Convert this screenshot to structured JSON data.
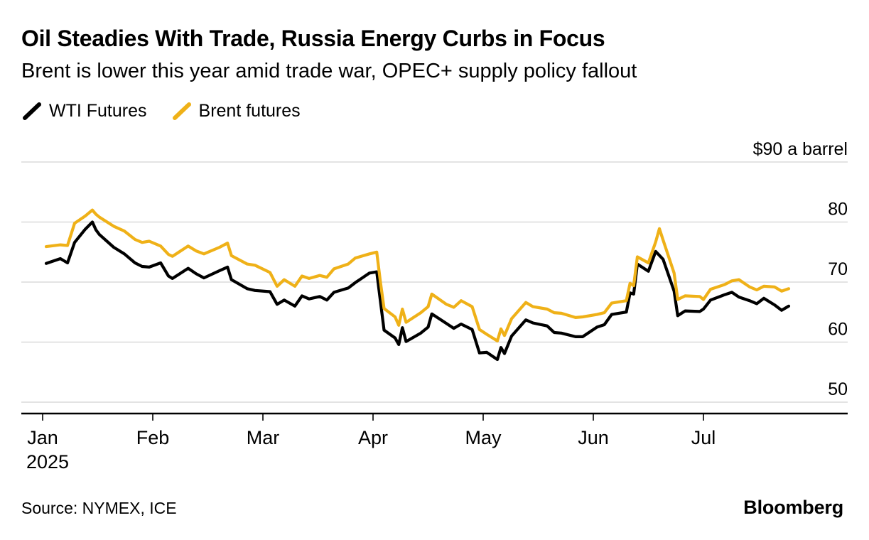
{
  "header": {
    "title": "Oil Steadies With Trade, Russia Energy Curbs in Focus",
    "subtitle": "Brent is lower this year amid trade war, OPEC+ supply policy fallout"
  },
  "legend": {
    "items": [
      {
        "label": "WTI Futures",
        "color": "#000000"
      },
      {
        "label": "Brent futures",
        "color": "#efb118"
      }
    ]
  },
  "chart_data": {
    "type": "line",
    "title": "Oil Steadies With Trade, Russia Energy Curbs in Focus",
    "subtitle": "Brent is lower this year amid trade war, OPEC+ supply policy fallout",
    "unit_label": "$90 a barrel",
    "ylim": [
      48,
      92
    ],
    "grid": true,
    "legend_position": "top-left",
    "y_ticks": [
      {
        "v": 90,
        "label": "$90 a barrel"
      },
      {
        "v": 80,
        "label": "80"
      },
      {
        "v": 70,
        "label": "70"
      },
      {
        "v": 60,
        "label": "60"
      },
      {
        "v": 50,
        "label": "50"
      }
    ],
    "x_ticks": [
      {
        "m": 0,
        "label": "Jan",
        "year": "2025"
      },
      {
        "m": 1,
        "label": "Feb"
      },
      {
        "m": 2,
        "label": "Mar"
      },
      {
        "m": 3,
        "label": "Apr"
      },
      {
        "m": 4,
        "label": "May"
      },
      {
        "m": 5,
        "label": "Jun"
      },
      {
        "m": 6,
        "label": "Jul"
      }
    ],
    "series": [
      {
        "name": "WTI Futures",
        "color": "#000000",
        "points": [
          [
            "2025-01-02",
            73.1
          ],
          [
            "2025-01-06",
            73.9
          ],
          [
            "2025-01-08",
            73.2
          ],
          [
            "2025-01-10",
            76.6
          ],
          [
            "2025-01-13",
            78.8
          ],
          [
            "2025-01-15",
            80.0
          ],
          [
            "2025-01-16",
            78.7
          ],
          [
            "2025-01-17",
            77.9
          ],
          [
            "2025-01-21",
            75.8
          ],
          [
            "2025-01-24",
            74.7
          ],
          [
            "2025-01-27",
            73.2
          ],
          [
            "2025-01-29",
            72.6
          ],
          [
            "2025-01-31",
            72.5
          ],
          [
            "2025-02-03",
            73.2
          ],
          [
            "2025-02-05",
            71.0
          ],
          [
            "2025-02-06",
            70.6
          ],
          [
            "2025-02-10",
            72.3
          ],
          [
            "2025-02-12",
            71.4
          ],
          [
            "2025-02-14",
            70.7
          ],
          [
            "2025-02-18",
            71.9
          ],
          [
            "2025-02-20",
            72.5
          ],
          [
            "2025-02-21",
            70.4
          ],
          [
            "2025-02-25",
            68.9
          ],
          [
            "2025-02-27",
            68.6
          ],
          [
            "2025-03-03",
            68.4
          ],
          [
            "2025-03-05",
            66.3
          ],
          [
            "2025-03-07",
            67.0
          ],
          [
            "2025-03-10",
            66.0
          ],
          [
            "2025-03-12",
            67.7
          ],
          [
            "2025-03-14",
            67.2
          ],
          [
            "2025-03-17",
            67.6
          ],
          [
            "2025-03-19",
            67.0
          ],
          [
            "2025-03-21",
            68.3
          ],
          [
            "2025-03-25",
            69.0
          ],
          [
            "2025-03-27",
            69.9
          ],
          [
            "2025-03-31",
            71.5
          ],
          [
            "2025-04-02",
            71.7
          ],
          [
            "2025-04-03",
            66.9
          ],
          [
            "2025-04-04",
            62.0
          ],
          [
            "2025-04-07",
            60.7
          ],
          [
            "2025-04-08",
            59.6
          ],
          [
            "2025-04-09",
            62.4
          ],
          [
            "2025-04-10",
            60.1
          ],
          [
            "2025-04-14",
            61.5
          ],
          [
            "2025-04-16",
            62.5
          ],
          [
            "2025-04-17",
            64.7
          ],
          [
            "2025-04-21",
            63.1
          ],
          [
            "2025-04-23",
            62.3
          ],
          [
            "2025-04-25",
            63.0
          ],
          [
            "2025-04-28",
            62.1
          ],
          [
            "2025-04-30",
            58.2
          ],
          [
            "2025-05-02",
            58.3
          ],
          [
            "2025-05-05",
            57.1
          ],
          [
            "2025-05-06",
            59.1
          ],
          [
            "2025-05-07",
            58.1
          ],
          [
            "2025-05-09",
            61.0
          ],
          [
            "2025-05-13",
            63.7
          ],
          [
            "2025-05-15",
            63.2
          ],
          [
            "2025-05-19",
            62.7
          ],
          [
            "2025-05-21",
            61.6
          ],
          [
            "2025-05-23",
            61.5
          ],
          [
            "2025-05-27",
            60.9
          ],
          [
            "2025-05-29",
            60.9
          ],
          [
            "2025-06-02",
            62.5
          ],
          [
            "2025-06-04",
            62.9
          ],
          [
            "2025-06-06",
            64.6
          ],
          [
            "2025-06-10",
            65.0
          ],
          [
            "2025-06-11",
            68.2
          ],
          [
            "2025-06-12",
            68.0
          ],
          [
            "2025-06-13",
            73.0
          ],
          [
            "2025-06-16",
            71.8
          ],
          [
            "2025-06-18",
            75.1
          ],
          [
            "2025-06-20",
            73.8
          ],
          [
            "2025-06-23",
            68.5
          ],
          [
            "2025-06-24",
            64.4
          ],
          [
            "2025-06-26",
            65.2
          ],
          [
            "2025-06-30",
            65.1
          ],
          [
            "2025-07-01",
            65.5
          ],
          [
            "2025-07-03",
            67.0
          ],
          [
            "2025-07-07",
            67.9
          ],
          [
            "2025-07-09",
            68.3
          ],
          [
            "2025-07-11",
            67.5
          ],
          [
            "2025-07-14",
            66.9
          ],
          [
            "2025-07-16",
            66.4
          ],
          [
            "2025-07-18",
            67.3
          ],
          [
            "2025-07-21",
            66.2
          ],
          [
            "2025-07-23",
            65.3
          ],
          [
            "2025-07-25",
            66.0
          ]
        ]
      },
      {
        "name": "Brent futures",
        "color": "#efb118",
        "points": [
          [
            "2025-01-02",
            75.9
          ],
          [
            "2025-01-06",
            76.2
          ],
          [
            "2025-01-08",
            76.1
          ],
          [
            "2025-01-10",
            79.8
          ],
          [
            "2025-01-13",
            81.0
          ],
          [
            "2025-01-15",
            82.0
          ],
          [
            "2025-01-16",
            81.3
          ],
          [
            "2025-01-17",
            80.8
          ],
          [
            "2025-01-21",
            79.3
          ],
          [
            "2025-01-24",
            78.5
          ],
          [
            "2025-01-27",
            77.1
          ],
          [
            "2025-01-29",
            76.6
          ],
          [
            "2025-01-31",
            76.8
          ],
          [
            "2025-02-03",
            76.0
          ],
          [
            "2025-02-05",
            74.6
          ],
          [
            "2025-02-06",
            74.3
          ],
          [
            "2025-02-10",
            76.0
          ],
          [
            "2025-02-12",
            75.2
          ],
          [
            "2025-02-14",
            74.7
          ],
          [
            "2025-02-18",
            75.8
          ],
          [
            "2025-02-20",
            76.5
          ],
          [
            "2025-02-21",
            74.4
          ],
          [
            "2025-02-25",
            73.0
          ],
          [
            "2025-02-27",
            72.8
          ],
          [
            "2025-03-03",
            71.6
          ],
          [
            "2025-03-05",
            69.3
          ],
          [
            "2025-03-07",
            70.4
          ],
          [
            "2025-03-10",
            69.3
          ],
          [
            "2025-03-12",
            71.0
          ],
          [
            "2025-03-14",
            70.6
          ],
          [
            "2025-03-17",
            71.1
          ],
          [
            "2025-03-19",
            70.8
          ],
          [
            "2025-03-21",
            72.2
          ],
          [
            "2025-03-25",
            73.0
          ],
          [
            "2025-03-27",
            74.0
          ],
          [
            "2025-03-31",
            74.7
          ],
          [
            "2025-04-02",
            75.0
          ],
          [
            "2025-04-03",
            70.1
          ],
          [
            "2025-04-04",
            65.6
          ],
          [
            "2025-04-07",
            64.2
          ],
          [
            "2025-04-08",
            62.8
          ],
          [
            "2025-04-09",
            65.5
          ],
          [
            "2025-04-10",
            63.3
          ],
          [
            "2025-04-14",
            64.9
          ],
          [
            "2025-04-16",
            65.9
          ],
          [
            "2025-04-17",
            68.0
          ],
          [
            "2025-04-21",
            66.3
          ],
          [
            "2025-04-23",
            65.8
          ],
          [
            "2025-04-25",
            66.9
          ],
          [
            "2025-04-28",
            65.9
          ],
          [
            "2025-04-30",
            62.1
          ],
          [
            "2025-05-02",
            61.3
          ],
          [
            "2025-05-05",
            60.2
          ],
          [
            "2025-05-06",
            62.2
          ],
          [
            "2025-05-07",
            61.1
          ],
          [
            "2025-05-09",
            63.9
          ],
          [
            "2025-05-13",
            66.6
          ],
          [
            "2025-05-15",
            65.9
          ],
          [
            "2025-05-19",
            65.5
          ],
          [
            "2025-05-21",
            64.9
          ],
          [
            "2025-05-23",
            64.8
          ],
          [
            "2025-05-27",
            64.1
          ],
          [
            "2025-05-29",
            64.2
          ],
          [
            "2025-06-02",
            64.6
          ],
          [
            "2025-06-04",
            64.9
          ],
          [
            "2025-06-06",
            66.5
          ],
          [
            "2025-06-10",
            66.9
          ],
          [
            "2025-06-11",
            69.8
          ],
          [
            "2025-06-12",
            69.4
          ],
          [
            "2025-06-13",
            74.2
          ],
          [
            "2025-06-16",
            73.2
          ],
          [
            "2025-06-18",
            76.7
          ],
          [
            "2025-06-19",
            78.9
          ],
          [
            "2025-06-20",
            77.0
          ],
          [
            "2025-06-23",
            71.5
          ],
          [
            "2025-06-24",
            67.1
          ],
          [
            "2025-06-26",
            67.7
          ],
          [
            "2025-06-30",
            67.6
          ],
          [
            "2025-07-01",
            67.1
          ],
          [
            "2025-07-03",
            68.8
          ],
          [
            "2025-07-07",
            69.6
          ],
          [
            "2025-07-09",
            70.2
          ],
          [
            "2025-07-11",
            70.4
          ],
          [
            "2025-07-14",
            69.2
          ],
          [
            "2025-07-16",
            68.7
          ],
          [
            "2025-07-18",
            69.3
          ],
          [
            "2025-07-21",
            69.2
          ],
          [
            "2025-07-23",
            68.5
          ],
          [
            "2025-07-25",
            68.9
          ]
        ]
      }
    ]
  },
  "footer": {
    "source": "Source: NYMEX, ICE",
    "brand": "Bloomberg"
  }
}
